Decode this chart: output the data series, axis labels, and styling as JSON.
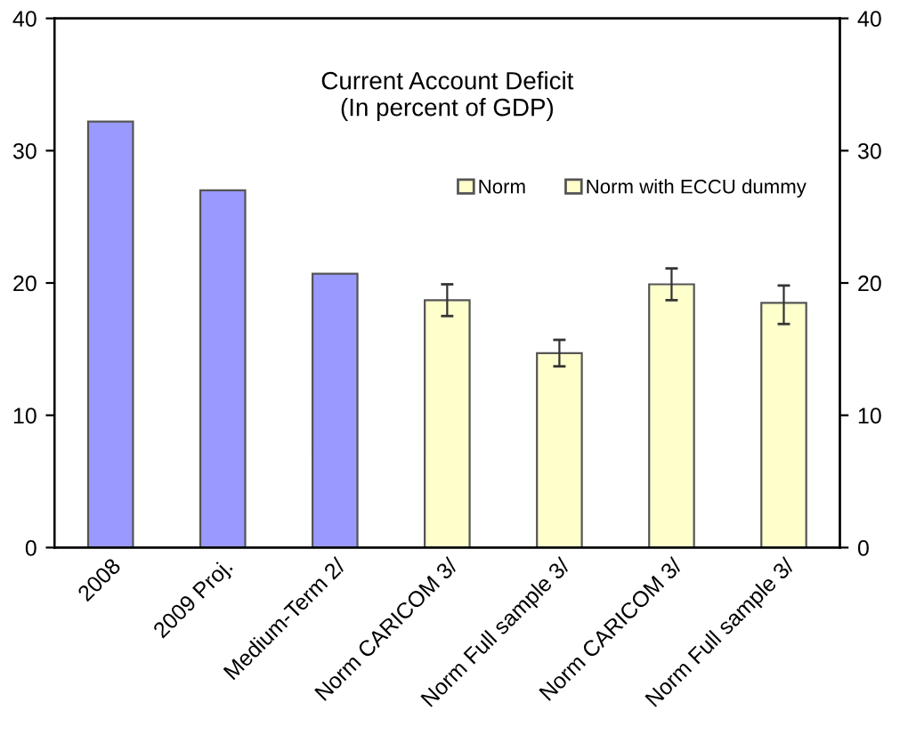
{
  "chart_data": {
    "type": "bar",
    "title": "Current Account Deficit\n(In percent of GDP)",
    "categories": [
      "2008",
      "2009 Proj.",
      "Medium-Term 2/",
      "Norm CARICOM 3/",
      "Norm Full sample 3/",
      "Norm CARICOM 3/",
      "Norm Full sample 3/"
    ],
    "series": [
      {
        "color": "#9999ff",
        "values": [
          32.2,
          27.0,
          20.7,
          null,
          null,
          null,
          null
        ]
      },
      {
        "name": "Norm",
        "color": "#ffffcc",
        "values": [
          null,
          null,
          null,
          18.7,
          14.7,
          null,
          null
        ],
        "errors": [
          null,
          null,
          null,
          [
            17.5,
            19.9
          ],
          [
            13.7,
            15.7
          ],
          null,
          null
        ]
      },
      {
        "name": "Norm with ECCU dummy",
        "color": "#ffffcc",
        "values": [
          null,
          null,
          null,
          null,
          null,
          19.9,
          18.5
        ],
        "errors": [
          null,
          null,
          null,
          null,
          null,
          [
            18.7,
            21.1
          ],
          [
            16.9,
            19.8
          ]
        ]
      }
    ],
    "ylim": [
      0,
      40
    ],
    "yticks": [
      0,
      10,
      20,
      30,
      40
    ],
    "y2lim": [
      0,
      40
    ],
    "y2ticks": [
      0,
      10,
      20,
      30,
      40
    ],
    "grid": false,
    "legend": "top right"
  }
}
